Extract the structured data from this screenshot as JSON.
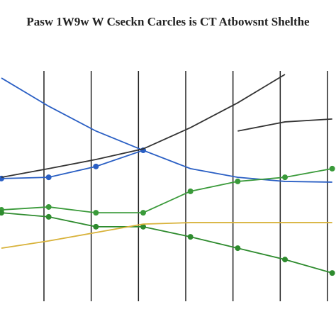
{
  "chart_data": {
    "type": "line",
    "title": "Pasw 1W9w W Cseckn Carcles is CT Atbowsnt Shelthe",
    "x": [
      0.1,
      1.1,
      2.1,
      3.1,
      4.1,
      5.1,
      6.1,
      7.1
    ],
    "xlim": [
      0.07,
      7.18
    ],
    "xticks": [
      1,
      2,
      3,
      4,
      5,
      6,
      7
    ],
    "ylim": [
      0,
      100
    ],
    "grid": true,
    "series": [
      {
        "color": "#2a5fc4",
        "markers": false,
        "values": [
          94.1,
          82.4,
          72.1,
          64.1,
          56.5,
          52.9,
          51.2,
          50.9
        ]
      },
      {
        "color": "#2a5fc4",
        "markers": true,
        "values": [
          52.4,
          52.9,
          57.4,
          64.1,
          null,
          null,
          null,
          null
        ]
      },
      {
        "color": "#333333",
        "markers": false,
        "values": [
          52.9,
          56.5,
          60.3,
          64.7,
          73.5,
          83.8,
          95.6,
          null
        ]
      },
      {
        "color": "#333333",
        "markers": false,
        "values": [
          null,
          null,
          null,
          null,
          null,
          72.1,
          75.9,
          77.1
        ]
      },
      {
        "color": "#3a9a3a",
        "markers": true,
        "values": [
          39.4,
          40.6,
          38.2,
          38.2,
          47.1,
          51.2,
          52.9,
          56.5
        ]
      },
      {
        "color": "#2e8b2e",
        "markers": true,
        "values": [
          38.2,
          36.5,
          32.4,
          32.4,
          28.2,
          23.5,
          18.8,
          13.2
        ]
      },
      {
        "color": "#d8b23a",
        "markers": false,
        "values": [
          23.5,
          26.5,
          30,
          33.5,
          34.1,
          34.1,
          34.1,
          34.1
        ]
      }
    ]
  }
}
